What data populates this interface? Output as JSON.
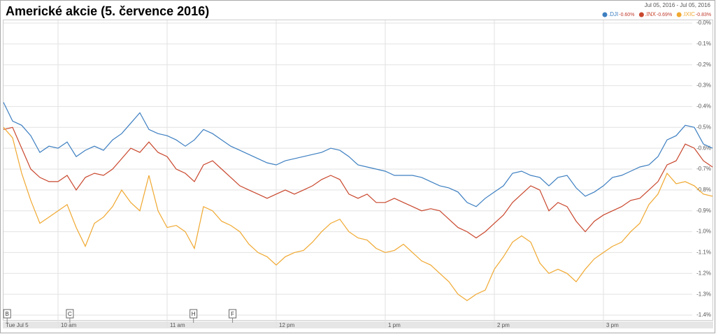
{
  "chart_data": {
    "type": "line",
    "title": "Americké akcie (5. července 2016)",
    "date_range": "Jul 05, 2016  -  Jul 05, 2016",
    "x": [
      570,
      575,
      580,
      585,
      590,
      595,
      600,
      605,
      610,
      615,
      620,
      625,
      630,
      635,
      640,
      645,
      650,
      655,
      660,
      665,
      670,
      675,
      680,
      685,
      690,
      695,
      700,
      705,
      710,
      715,
      720,
      725,
      730,
      735,
      740,
      745,
      750,
      755,
      760,
      765,
      770,
      775,
      780,
      785,
      790,
      795,
      800,
      805,
      810,
      815,
      820,
      825,
      830,
      835,
      840,
      845,
      850,
      855,
      860,
      865,
      870,
      875,
      880,
      885,
      890,
      895,
      900,
      905,
      910,
      915,
      920,
      925,
      930,
      935,
      940,
      945,
      950,
      955,
      960
    ],
    "xlim": [
      570,
      960
    ],
    "xticks": [
      {
        "value": 570,
        "label": "Tue Jul 5"
      },
      {
        "value": 600,
        "label": "10 am"
      },
      {
        "value": 660,
        "label": "11 am"
      },
      {
        "value": 720,
        "label": "12 pm"
      },
      {
        "value": 780,
        "label": "1 pm"
      },
      {
        "value": 840,
        "label": "2 pm"
      },
      {
        "value": 900,
        "label": "3 pm"
      }
    ],
    "ylim": [
      -1.4,
      0
    ],
    "yticks": [
      {
        "value": 0,
        "label": "-0.0%"
      },
      {
        "value": -0.1,
        "label": "-0.1%"
      },
      {
        "value": -0.2,
        "label": "-0.2%"
      },
      {
        "value": -0.3,
        "label": "-0.3%"
      },
      {
        "value": -0.4,
        "label": "-0.4%"
      },
      {
        "value": -0.5,
        "label": "-0.5%"
      },
      {
        "value": -0.6,
        "label": "-0.6%"
      },
      {
        "value": -0.7,
        "label": "-0.7%"
      },
      {
        "value": -0.8,
        "label": "-0.8%"
      },
      {
        "value": -0.9,
        "label": "-0.9%"
      },
      {
        "value": -1.0,
        "label": "-1.0%"
      },
      {
        "value": -1.1,
        "label": "-1.1%"
      },
      {
        "value": -1.2,
        "label": "-1.2%"
      },
      {
        "value": -1.3,
        "label": "-1.3%"
      },
      {
        "value": -1.4,
        "label": "-1.4%"
      }
    ],
    "grid": true,
    "flags": [
      {
        "label": "B",
        "x": 572
      },
      {
        "label": "C",
        "x": 606.5
      },
      {
        "label": "H",
        "x": 674.5
      },
      {
        "label": "F",
        "x": 696
      }
    ],
    "series": [
      {
        "name": ".DJI",
        "change_label": "-0.60%",
        "color": "#3d7fc1",
        "values": [
          -0.38,
          -0.47,
          -0.49,
          -0.54,
          -0.62,
          -0.59,
          -0.6,
          -0.57,
          -0.64,
          -0.61,
          -0.59,
          -0.61,
          -0.56,
          -0.53,
          -0.48,
          -0.43,
          -0.51,
          -0.53,
          -0.54,
          -0.56,
          -0.59,
          -0.56,
          -0.51,
          -0.53,
          -0.56,
          -0.59,
          -0.61,
          -0.63,
          -0.65,
          -0.67,
          -0.68,
          -0.66,
          -0.65,
          -0.64,
          -0.63,
          -0.62,
          -0.6,
          -0.61,
          -0.64,
          -0.68,
          -0.69,
          -0.7,
          -0.71,
          -0.73,
          -0.73,
          -0.73,
          -0.74,
          -0.76,
          -0.78,
          -0.79,
          -0.81,
          -0.86,
          -0.88,
          -0.84,
          -0.81,
          -0.78,
          -0.72,
          -0.71,
          -0.73,
          -0.74,
          -0.78,
          -0.74,
          -0.73,
          -0.79,
          -0.83,
          -0.81,
          -0.78,
          -0.74,
          -0.73,
          -0.71,
          -0.69,
          -0.68,
          -0.64,
          -0.56,
          -0.54,
          -0.49,
          -0.5,
          -0.58,
          -0.6
        ]
      },
      {
        "name": ".INX",
        "change_label": "-0.69%",
        "color": "#c9472d",
        "values": [
          -0.51,
          -0.5,
          -0.6,
          -0.7,
          -0.74,
          -0.76,
          -0.76,
          -0.73,
          -0.8,
          -0.74,
          -0.72,
          -0.73,
          -0.7,
          -0.65,
          -0.6,
          -0.62,
          -0.57,
          -0.62,
          -0.64,
          -0.7,
          -0.72,
          -0.76,
          -0.68,
          -0.66,
          -0.7,
          -0.74,
          -0.78,
          -0.8,
          -0.82,
          -0.84,
          -0.82,
          -0.8,
          -0.82,
          -0.8,
          -0.78,
          -0.75,
          -0.73,
          -0.75,
          -0.82,
          -0.84,
          -0.82,
          -0.86,
          -0.86,
          -0.84,
          -0.86,
          -0.88,
          -0.9,
          -0.89,
          -0.9,
          -0.94,
          -0.98,
          -1.0,
          -1.03,
          -1.0,
          -0.96,
          -0.92,
          -0.86,
          -0.82,
          -0.78,
          -0.8,
          -0.9,
          -0.86,
          -0.88,
          -0.95,
          -1.0,
          -0.95,
          -0.92,
          -0.9,
          -0.88,
          -0.85,
          -0.84,
          -0.8,
          -0.76,
          -0.68,
          -0.66,
          -0.58,
          -0.6,
          -0.66,
          -0.69
        ]
      },
      {
        "name": ".IXIC",
        "change_label": "-0.83%",
        "color": "#f0a830",
        "values": [
          -0.5,
          -0.55,
          -0.72,
          -0.85,
          -0.96,
          -0.93,
          -0.9,
          -0.87,
          -0.98,
          -1.07,
          -0.96,
          -0.93,
          -0.88,
          -0.8,
          -0.86,
          -0.9,
          -0.73,
          -0.9,
          -0.98,
          -0.97,
          -1.0,
          -1.08,
          -0.88,
          -0.9,
          -0.95,
          -0.97,
          -1.0,
          -1.06,
          -1.1,
          -1.12,
          -1.16,
          -1.12,
          -1.1,
          -1.09,
          -1.05,
          -1.0,
          -0.96,
          -0.94,
          -1.0,
          -1.03,
          -1.04,
          -1.08,
          -1.1,
          -1.09,
          -1.06,
          -1.1,
          -1.14,
          -1.16,
          -1.2,
          -1.24,
          -1.3,
          -1.33,
          -1.3,
          -1.28,
          -1.18,
          -1.12,
          -1.05,
          -1.02,
          -1.05,
          -1.15,
          -1.2,
          -1.18,
          -1.2,
          -1.24,
          -1.18,
          -1.13,
          -1.1,
          -1.07,
          -1.05,
          -1.0,
          -0.96,
          -0.87,
          -0.82,
          -0.72,
          -0.77,
          -0.76,
          -0.78,
          -0.82,
          -0.83
        ]
      }
    ]
  }
}
